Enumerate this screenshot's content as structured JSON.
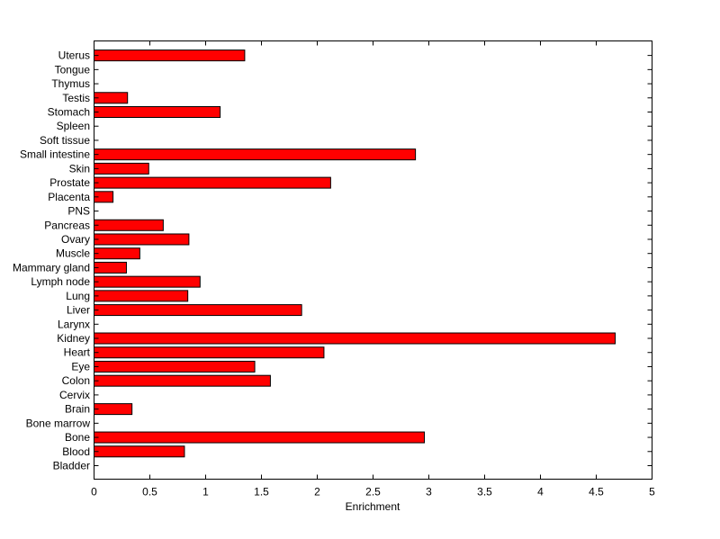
{
  "chart_data": {
    "type": "bar",
    "orientation": "horizontal",
    "title": "",
    "xlabel": "Enrichment",
    "ylabel": "",
    "xlim": [
      0,
      5
    ],
    "x_ticks": [
      "0",
      "0.5",
      "1",
      "1.5",
      "2",
      "2.5",
      "3",
      "3.5",
      "4",
      "4.5",
      "5"
    ],
    "grid": false,
    "bar_color": "#ff0000",
    "categories": [
      "Bladder",
      "Blood",
      "Bone",
      "Bone marrow",
      "Brain",
      "Cervix",
      "Colon",
      "Eye",
      "Heart",
      "Kidney",
      "Larynx",
      "Liver",
      "Lung",
      "Lymph node",
      "Mammary gland",
      "Muscle",
      "Ovary",
      "Pancreas",
      "PNS",
      "Placenta",
      "Prostate",
      "Skin",
      "Small intestine",
      "Soft tissue",
      "Spleen",
      "Stomach",
      "Testis",
      "Thymus",
      "Tongue",
      "Uterus"
    ],
    "values": [
      0,
      0.81,
      2.96,
      0,
      0.34,
      0,
      1.58,
      1.44,
      2.06,
      4.67,
      0,
      1.86,
      0.84,
      0.95,
      0.29,
      0.41,
      0.85,
      0.62,
      0,
      0.17,
      2.12,
      0.49,
      2.88,
      0,
      0,
      1.13,
      0.3,
      0,
      0,
      1.35
    ]
  }
}
